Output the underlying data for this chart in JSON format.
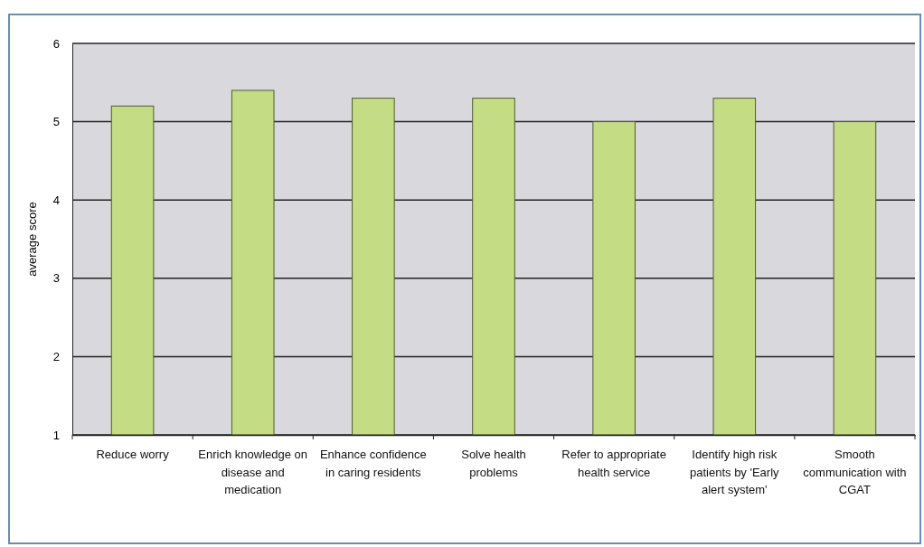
{
  "chart_data": {
    "type": "bar",
    "ylabel": "average score",
    "categories": [
      "Reduce worry",
      "Enrich knowledge on disease and medication",
      "Enhance confidence in caring residents",
      "Solve health problems",
      "Refer to appropriate health service",
      "Identify high risk patients by 'Early alert system'",
      "Smooth communication with CGAT"
    ],
    "values": [
      5.2,
      5.4,
      5.3,
      5.3,
      5.0,
      5.3,
      5.0
    ],
    "color": "#c4dc84",
    "ylim": [
      1,
      6
    ],
    "yticks": [
      1,
      2,
      3,
      4,
      5,
      6
    ],
    "grid": "y"
  }
}
